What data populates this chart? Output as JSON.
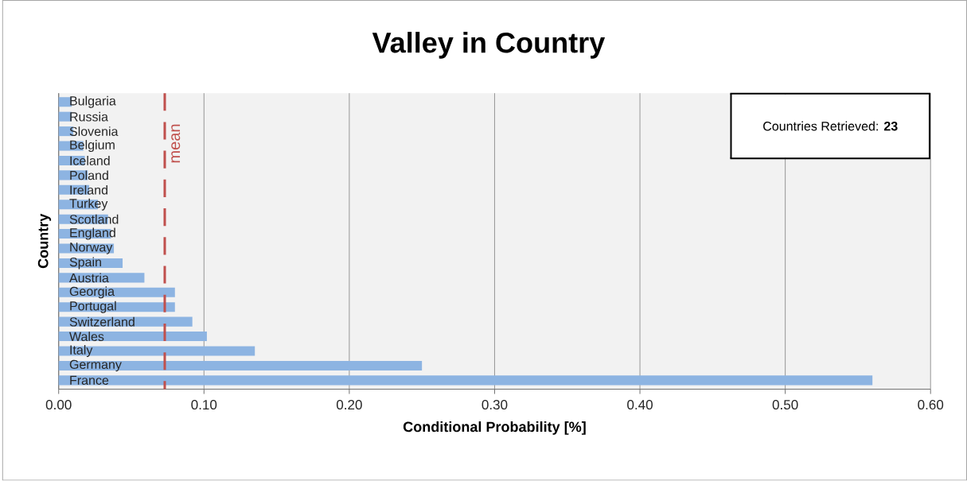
{
  "chart_data": {
    "type": "bar",
    "orientation": "horizontal",
    "title": "Valley in Country",
    "xlabel": "Conditional  Probability [%]",
    "ylabel": "Country",
    "categories": [
      "Bulgaria",
      "Russia",
      "Slovenia",
      "Belgium",
      "Iceland",
      "Poland",
      "Ireland",
      "Turkey",
      "Scotland",
      "England",
      "Norway",
      "Spain",
      "Austria",
      "Georgia",
      "Portugal",
      "Switzerland",
      "Wales",
      "Italy",
      "Germany",
      "France"
    ],
    "values": [
      0.009,
      0.009,
      0.01,
      0.017,
      0.018,
      0.02,
      0.021,
      0.027,
      0.034,
      0.036,
      0.038,
      0.044,
      0.059,
      0.08,
      0.08,
      0.092,
      0.102,
      0.135,
      0.25,
      0.56
    ],
    "color": "#8db4e2",
    "xlim": [
      0,
      0.6
    ],
    "xticks": [
      {
        "value": 0,
        "label": "0.00"
      },
      {
        "value": 0.1,
        "label": "0.10"
      },
      {
        "value": 0.2,
        "label": "0.20"
      },
      {
        "value": 0.3,
        "label": "0.30"
      },
      {
        "value": 0.4,
        "label": "0.40"
      },
      {
        "value": 0.5,
        "label": "0.50"
      },
      {
        "value": 0.6,
        "label": "0.60"
      }
    ],
    "grid": "x",
    "ref_lines": [
      {
        "axis": "x",
        "value": 0.073,
        "label": "mean",
        "color": "#c0504d",
        "line_style": "dashed"
      }
    ],
    "annotations": [
      "Countries Retrieved: **23**"
    ]
  }
}
